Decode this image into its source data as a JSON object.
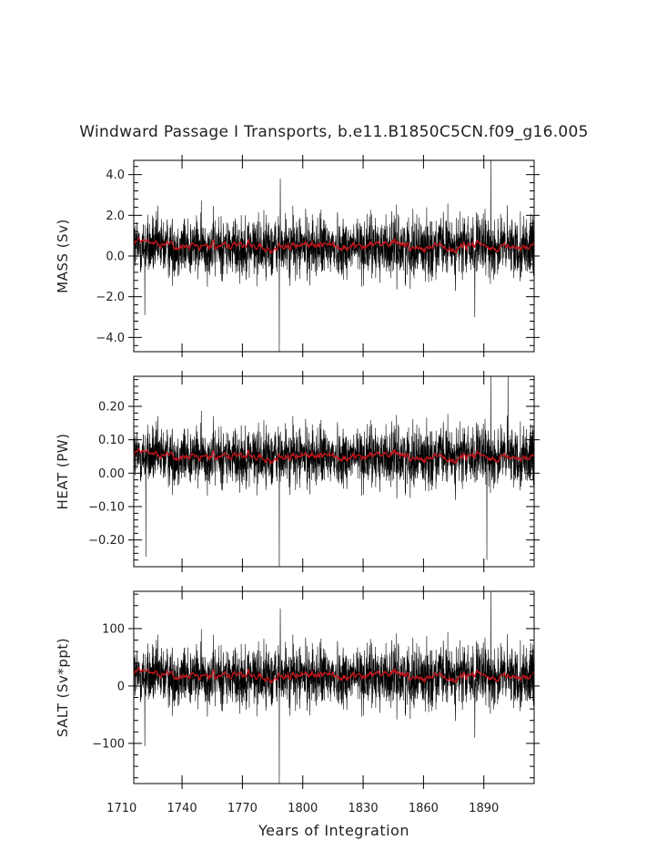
{
  "chart_data": {
    "type": "line",
    "title": "Windward Passage I Transports, b.e11.B1850C5CN.f09_g16.005",
    "xlabel": "Years of Integration",
    "xlim": [
      1716,
      1915
    ],
    "xticks": [
      1710,
      1740,
      1770,
      1800,
      1830,
      1860,
      1890
    ],
    "grid": false,
    "legend": "none",
    "colors": {
      "raw": "#000000",
      "smoothed": "#c8161d"
    },
    "panels": [
      {
        "ylabel": "MASS (Sv)",
        "ylim": [
          -4.7,
          4.7
        ],
        "yticks": [
          4.0,
          2.0,
          0.0,
          -2.0,
          -4.0
        ],
        "ytick_labels": [
          "4.0",
          "2.0",
          "0.0",
          "−2.0",
          "−4.0"
        ],
        "raw_mean": 0.45,
        "raw_amplitude": 0.75,
        "smoothed_mean": 0.5,
        "smoothed_amplitude": 0.2,
        "spikes": [
          [
            1721.5,
            -2.9
          ],
          [
            1788.3,
            -4.7
          ],
          [
            1788.8,
            3.8
          ],
          [
            1893.5,
            4.7
          ],
          [
            1885.5,
            -3.0
          ]
        ]
      },
      {
        "ylabel": "HEAT (PW)",
        "ylim": [
          -0.28,
          0.29
        ],
        "yticks": [
          0.2,
          0.1,
          0.0,
          -0.1,
          -0.2
        ],
        "ytick_labels": [
          "0.20",
          "0.10",
          "0.00",
          "−0.10",
          "−0.20"
        ],
        "raw_mean": 0.05,
        "raw_amplitude": 0.045,
        "smoothed_mean": 0.05,
        "smoothed_amplitude": 0.012,
        "spikes": [
          [
            1722,
            -0.25
          ],
          [
            1788.3,
            -0.28
          ],
          [
            1891.5,
            -0.26
          ],
          [
            1893.5,
            0.29
          ],
          [
            1902,
            0.29
          ]
        ]
      },
      {
        "ylabel": "SALT (Sv*ppt)",
        "ylim": [
          -170,
          165
        ],
        "yticks": [
          100,
          0,
          -100
        ],
        "ytick_labels": [
          "100",
          "0",
          "−100"
        ],
        "raw_mean": 17,
        "raw_amplitude": 27,
        "smoothed_mean": 18,
        "smoothed_amplitude": 7,
        "spikes": [
          [
            1721.5,
            -105
          ],
          [
            1788.3,
            -170
          ],
          [
            1788.8,
            135
          ],
          [
            1893.5,
            165
          ],
          [
            1885.5,
            -90
          ]
        ]
      }
    ]
  }
}
